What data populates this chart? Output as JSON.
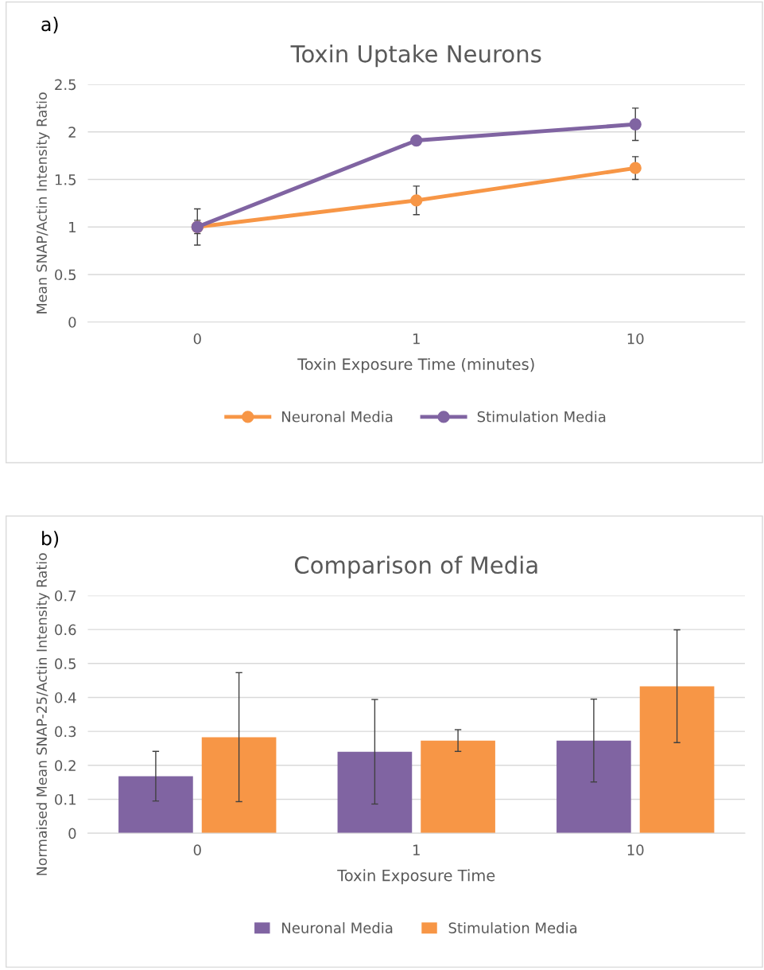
{
  "chart_data": [
    {
      "type": "line",
      "title": "Toxin Uptake Neurons",
      "annotations": [
        "a)"
      ],
      "xlabel": "Toxin Exposure Time (minutes)",
      "ylabel": "Mean SNAP/Actin Intensity Ratio",
      "categories": [
        "0",
        "1",
        "10"
      ],
      "ylim": [
        0,
        2.5
      ],
      "yticks": [
        0,
        0.5,
        1,
        1.5,
        2,
        2.5
      ],
      "grid": "y",
      "legend": "bottom",
      "marker": "circle",
      "line_style": "solid",
      "series": [
        {
          "name": "Neuronal Media",
          "color": "#f79646",
          "values": [
            1.0,
            1.28,
            1.62
          ],
          "errors": [
            0.07,
            0.15,
            0.12
          ]
        },
        {
          "name": "Stimulation Media",
          "color": "#8064a2",
          "values": [
            1.0,
            1.91,
            2.08
          ],
          "errors": [
            0.19,
            null,
            0.17
          ]
        }
      ]
    },
    {
      "type": "bar",
      "title": "Comparison of Media",
      "annotations": [
        "b)"
      ],
      "xlabel": "Toxin Exposure Time",
      "ylabel": "Normaised Mean SNAP-25/Actin Intensity Ratio",
      "categories": [
        "0",
        "1",
        "10"
      ],
      "ylim": [
        0,
        0.7
      ],
      "yticks": [
        0,
        0.1,
        0.2,
        0.3,
        0.4,
        0.5,
        0.6,
        0.7
      ],
      "grid": "y",
      "legend": "bottom",
      "series": [
        {
          "name": "Neuronal Media",
          "color": "#8064a2",
          "values": [
            0.168,
            0.24,
            0.273
          ],
          "errors": [
            0.073,
            0.154,
            0.122
          ]
        },
        {
          "name": "Stimulation Media",
          "color": "#f79646",
          "values": [
            0.283,
            0.273,
            0.433
          ],
          "errors": [
            0.19,
            0.032,
            0.166
          ]
        }
      ]
    }
  ]
}
